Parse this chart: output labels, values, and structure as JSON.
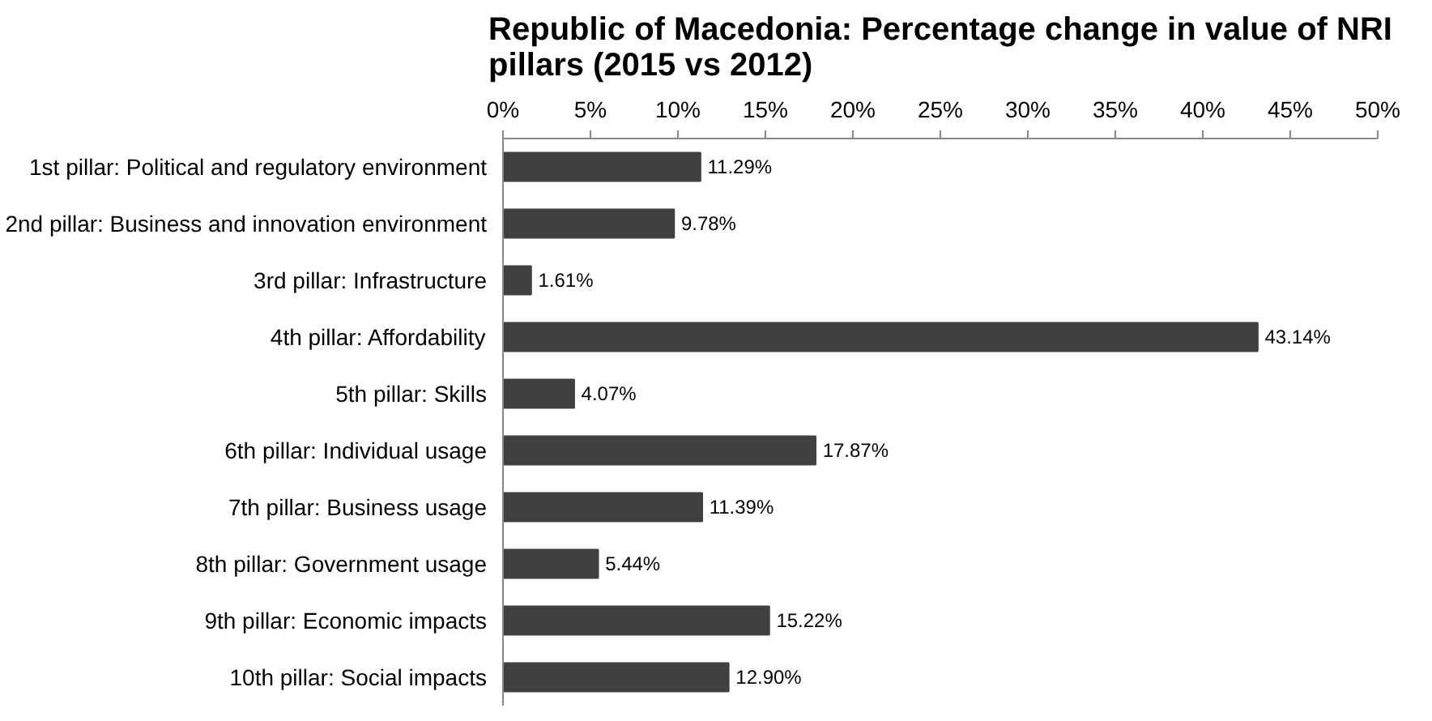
{
  "chart_data": {
    "type": "bar",
    "orientation": "horizontal",
    "title": "Republic of Macedonia: Percentage change in value of NRI pillars (2015 vs 2012)",
    "categories": [
      "1st pillar: Political and regulatory environment",
      "2nd pillar: Business and innovation environment",
      "3rd pillar: Infrastructure",
      "4th pillar: Affordability",
      "5th pillar: Skills",
      "6th pillar: Individual usage",
      "7th pillar: Business usage",
      "8th pillar: Government usage",
      "9th pillar: Economic impacts",
      "10th pillar: Social impacts"
    ],
    "values": [
      11.29,
      9.78,
      1.61,
      43.14,
      4.07,
      17.87,
      11.39,
      5.44,
      15.22,
      12.9
    ],
    "value_labels": [
      "11.29%",
      "9.78%",
      "1.61%",
      "43.14%",
      "4.07%",
      "17.87%",
      "11.39%",
      "5.44%",
      "15.22%",
      "12.90%"
    ],
    "color": "#404040",
    "xlim": [
      0,
      50
    ],
    "xticks": [
      {
        "value": 0,
        "label": "0%"
      },
      {
        "value": 5,
        "label": "5%"
      },
      {
        "value": 10,
        "label": "10%"
      },
      {
        "value": 15,
        "label": "15%"
      },
      {
        "value": 20,
        "label": "20%"
      },
      {
        "value": 25,
        "label": "25%"
      },
      {
        "value": 30,
        "label": "30%"
      },
      {
        "value": 35,
        "label": "35%"
      },
      {
        "value": 40,
        "label": "40%"
      },
      {
        "value": 45,
        "label": "45%"
      },
      {
        "value": 50,
        "label": "50%"
      }
    ],
    "grid": false
  }
}
